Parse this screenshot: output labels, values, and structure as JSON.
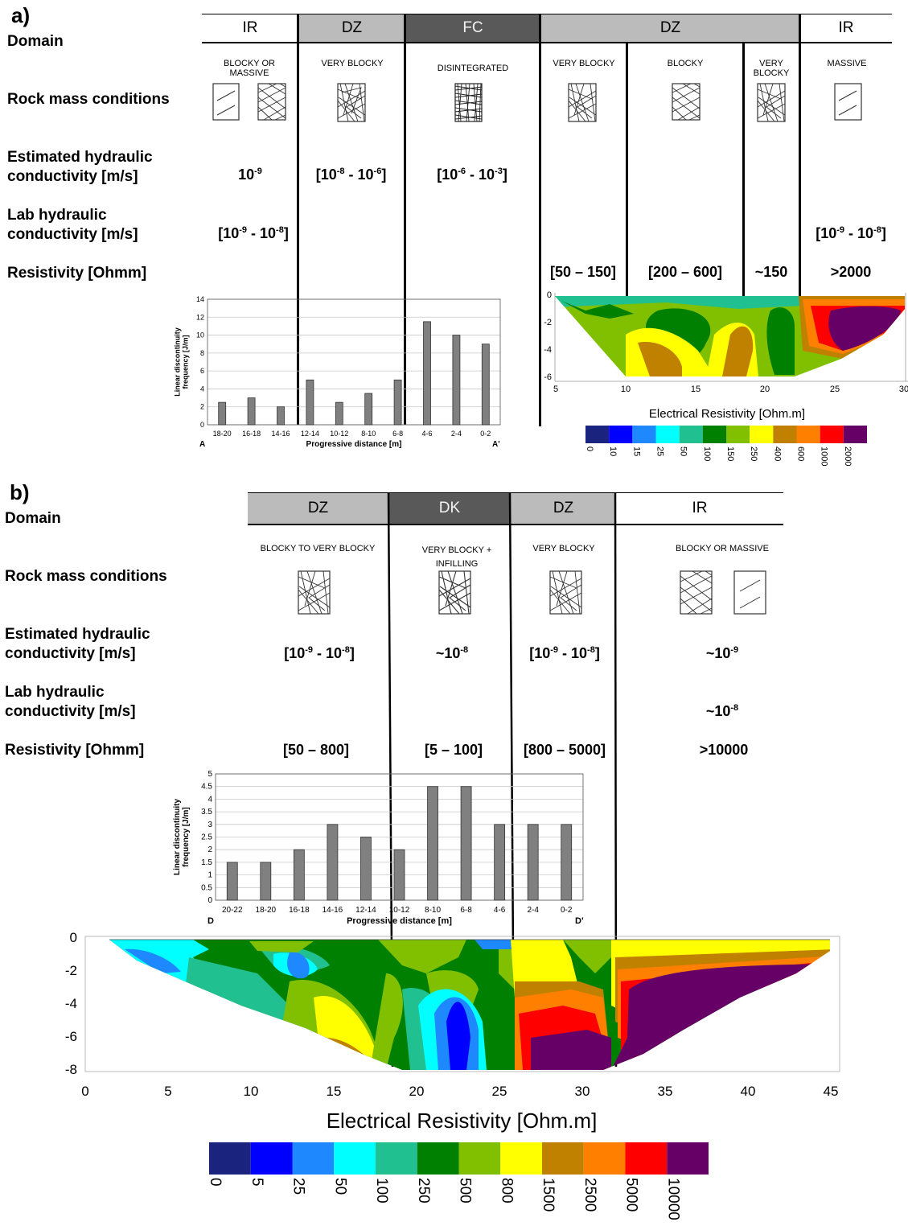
{
  "panel_a": {
    "label": "a)",
    "row_labels": {
      "domain": "Domain",
      "rock_mass": "Rock mass conditions",
      "est_k_1": "Estimated hydraulic",
      "est_k_2": "conductivity [m/s]",
      "lab_k_1": "Lab hydraulic",
      "lab_k_2": "conductivity [m/s]",
      "resistivity": "Resistivity [Ohmm]"
    },
    "domains": [
      "IR",
      "DZ",
      "FC",
      "DZ",
      "IR"
    ],
    "conditions": [
      "BLOCKY OR MASSIVE",
      "VERY BLOCKY",
      "DISINTEGRATED",
      "VERY BLOCKY",
      "BLOCKY",
      "VERY BLOCKY",
      "MASSIVE"
    ],
    "est_k": [
      "10-9",
      "[10-8 - 10-6]",
      "[10-6 - 10-3]"
    ],
    "lab_k": [
      "[10-9 - 10-8]",
      "[10-9 - 10-8]"
    ],
    "resistivity": [
      "[50 – 150]",
      "[200 – 600]",
      "~150",
      ">2000"
    ],
    "ert_title": "Electrical Resistivity [Ohm.m]",
    "colorbar_labels": [
      "0",
      "10",
      "15",
      "25",
      "50",
      "100",
      "150",
      "250",
      "400",
      "600",
      "1000",
      "2000"
    ],
    "ert_xticks": [
      "5",
      "10",
      "15",
      "20",
      "25",
      "30"
    ],
    "ert_yticks": [
      "0",
      "-2",
      "-4",
      "-6"
    ]
  },
  "panel_b": {
    "label": "b)",
    "row_labels": {
      "domain": "Domain",
      "rock_mass": "Rock mass conditions",
      "est_k_1": "Estimated hydraulic",
      "est_k_2": "conductivity [m/s]",
      "lab_k_1": "Lab hydraulic",
      "lab_k_2": "conductivity [m/s]",
      "resistivity": "Resistivity [Ohmm]"
    },
    "domains": [
      "DZ",
      "DK",
      "DZ",
      "IR"
    ],
    "conditions": [
      "BLOCKY TO VERY BLOCKY",
      "VERY BLOCKY + INFILLING",
      "VERY BLOCKY",
      "BLOCKY OR MASSIVE"
    ],
    "est_k": [
      "[10-9 - 10-8]",
      "~10-8",
      "[10-9 - 10-8]",
      "~10-9"
    ],
    "lab_k": [
      "~10-8"
    ],
    "resistivity": [
      "[50 – 800]",
      "[5 – 100]",
      "[800 – 5000]",
      ">10000"
    ],
    "ert_title": "Electrical Resistivity [Ohm.m]",
    "colorbar_labels": [
      "0",
      "5",
      "25",
      "50",
      "100",
      "250",
      "500",
      "800",
      "1500",
      "2500",
      "5000",
      "10000"
    ],
    "ert_xticks": [
      "0",
      "5",
      "10",
      "15",
      "20",
      "25",
      "30",
      "35",
      "40",
      "45"
    ],
    "ert_yticks": [
      "0",
      "-2",
      "-4",
      "-6",
      "-8"
    ]
  },
  "chart_data": [
    {
      "type": "bar",
      "ylabel": "Linear discontinuity frequency [J/m]",
      "xlabel": "Progressive distance [m]",
      "start_label": "A",
      "end_label": "A'",
      "categories": [
        "18-20",
        "16-18",
        "14-16",
        "12-14",
        "10-12",
        "8-10",
        "6-8",
        "4-6",
        "2-4",
        "0-2"
      ],
      "values": [
        2.5,
        3,
        2,
        5,
        2.5,
        3.5,
        5,
        11.5,
        10,
        9
      ],
      "ylim": [
        0,
        14
      ],
      "yticks": [
        "0",
        "2",
        "4",
        "6",
        "8",
        "10",
        "12",
        "14"
      ],
      "bar_color": "#808080"
    },
    {
      "type": "bar",
      "ylabel": "Linear discontinuity frequency [J/m]",
      "xlabel": "Progressive distance [m]",
      "start_label": "D",
      "end_label": "D'",
      "categories": [
        "20-22",
        "18-20",
        "16-18",
        "14-16",
        "12-14",
        "10-12",
        "8-10",
        "6-8",
        "4-6",
        "2-4",
        "0-2"
      ],
      "values": [
        1.5,
        1.5,
        2,
        3,
        2.5,
        2,
        4.5,
        4.5,
        3,
        3,
        3
      ],
      "ylim": [
        0,
        5
      ],
      "yticks": [
        "0",
        "0.5",
        "1",
        "1.5",
        "2",
        "2.5",
        "3",
        "3.5",
        "4",
        "4.5",
        "5"
      ],
      "bar_color": "#808080"
    }
  ],
  "colors": {
    "ert_scale": [
      "#1a237e",
      "#0000ff",
      "#1e88ff",
      "#00ffff",
      "#20c090",
      "#008000",
      "#80c000",
      "#ffff00",
      "#c08000",
      "#ff8000",
      "#ff0000",
      "#660066"
    ]
  }
}
